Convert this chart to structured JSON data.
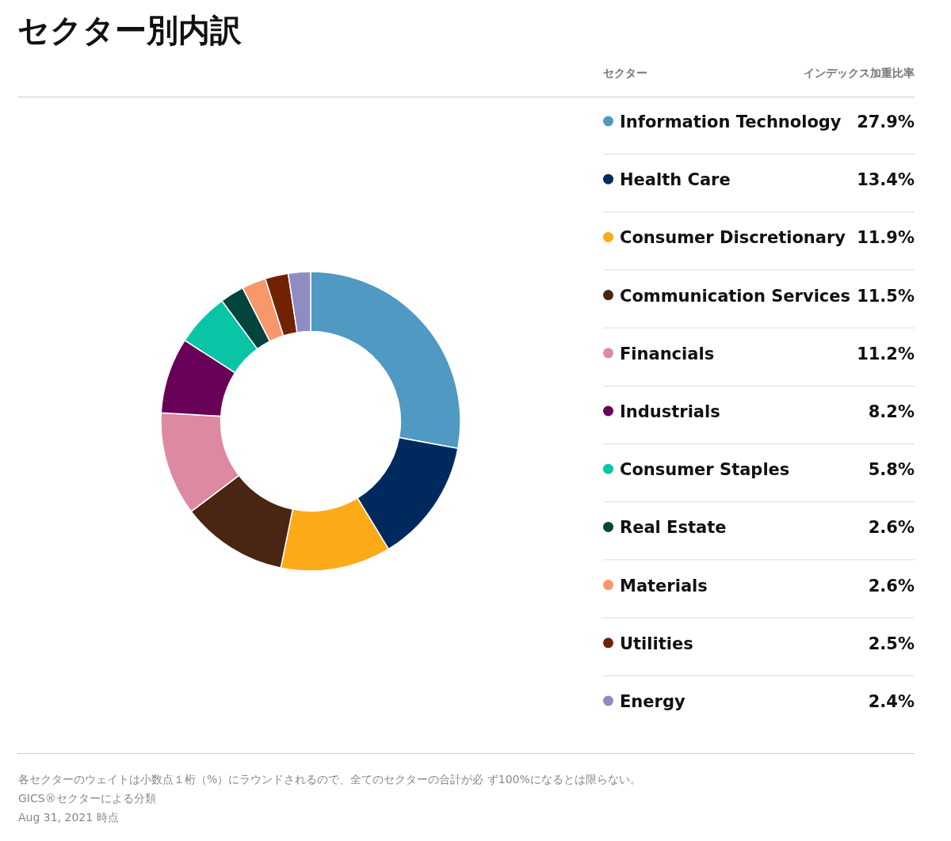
{
  "chart_data": {
    "type": "donut",
    "title": "セクター別内訳",
    "legend_title": "セクター",
    "categories": [
      "Information Technology",
      "Health Care",
      "Consumer Discretionary",
      "Communication Services",
      "Financials",
      "Industrials",
      "Consumer Staples",
      "Real Estate",
      "Materials",
      "Utilities",
      "Energy"
    ],
    "values": [
      27.9,
      13.4,
      11.9,
      11.5,
      11.2,
      8.2,
      5.8,
      2.6,
      2.6,
      2.5,
      2.4
    ],
    "colors": [
      "#4f99c2",
      "#002a5e",
      "#fdaa19",
      "#4a2514",
      "#dd89a2",
      "#680157",
      "#09c5a6",
      "#03443d",
      "#f7976b",
      "#712204",
      "#8f8cc4"
    ],
    "value_labels": [
      "27.9%",
      "13.4%",
      "11.9%",
      "11.5%",
      "11.2%",
      "8.2%",
      "5.8%",
      "2.6%",
      "2.6%",
      "2.5%",
      "2.4%"
    ],
    "legend": "right",
    "annotations": [
      "インデックス加重比率",
      "各セクターのウェイトは小数点１桁（%）にラウンドされるので、全てのセクターの合計が必 ず100%になるとは限らない。",
      "GICS®セクターによる分類",
      "Aug 31, 2021 時点"
    ]
  }
}
